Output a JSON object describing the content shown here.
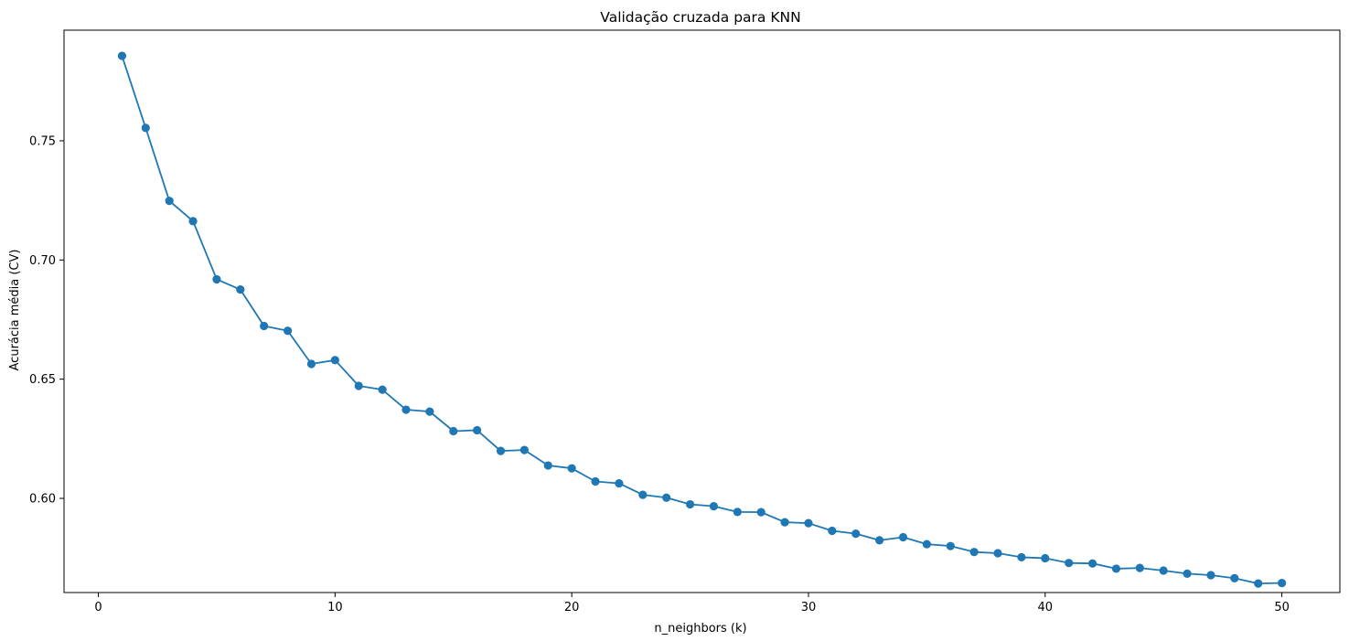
{
  "chart_data": {
    "type": "line",
    "title": "Validação cruzada para KNN",
    "xlabel": "n_neighbors (k)",
    "ylabel": "Acurácia média (CV)",
    "xlim": [
      -1.45,
      52.45
    ],
    "ylim": [
      0.5605,
      0.7964
    ],
    "xticks": [
      0,
      10,
      20,
      30,
      40,
      50
    ],
    "xtick_labels": [
      "0",
      "10",
      "20",
      "30",
      "40",
      "50"
    ],
    "yticks": [
      0.6,
      0.65,
      0.7,
      0.75
    ],
    "ytick_labels": [
      "0.60",
      "0.65",
      "0.70",
      "0.75"
    ],
    "grid": false,
    "color": "#1f77b4",
    "marker": "circle",
    "series": [
      {
        "x": [
          1,
          2,
          3,
          4,
          5,
          6,
          7,
          8,
          9,
          10,
          11,
          12,
          13,
          14,
          15,
          16,
          17,
          18,
          19,
          20,
          21,
          22,
          23,
          24,
          25,
          26,
          27,
          28,
          29,
          30,
          31,
          32,
          33,
          34,
          35,
          36,
          37,
          38,
          39,
          40,
          41,
          42,
          43,
          44,
          45,
          46,
          47,
          48,
          49,
          50
        ],
        "values": [
          0.7856,
          0.7554,
          0.7248,
          0.7163,
          0.6919,
          0.6876,
          0.6723,
          0.6703,
          0.6564,
          0.658,
          0.6472,
          0.6456,
          0.6372,
          0.6364,
          0.6282,
          0.6286,
          0.6199,
          0.6203,
          0.6138,
          0.6126,
          0.6071,
          0.6063,
          0.6015,
          0.6003,
          0.5975,
          0.5967,
          0.5943,
          0.5942,
          0.59,
          0.5896,
          0.5864,
          0.5852,
          0.5824,
          0.5837,
          0.5808,
          0.58,
          0.5775,
          0.577,
          0.5753,
          0.5749,
          0.5729,
          0.5727,
          0.5705,
          0.5708,
          0.5697,
          0.5684,
          0.5678,
          0.5665,
          0.5643,
          0.5645
        ]
      }
    ]
  }
}
